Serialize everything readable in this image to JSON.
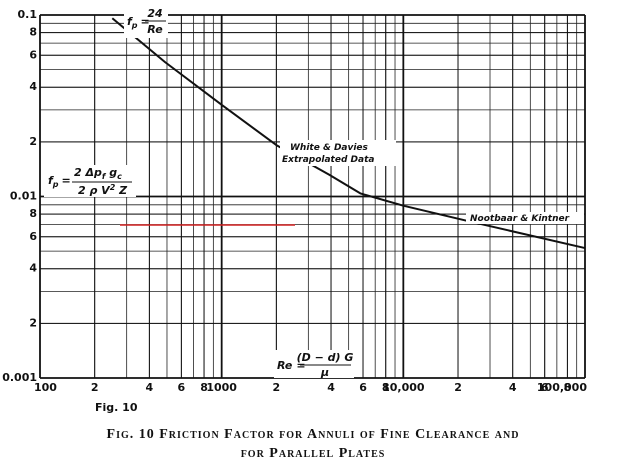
{
  "chart_data": {
    "type": "line",
    "caption": [
      "Fig. 10   Friction Factor for Annuli of Fine Clearance and",
      "for Parallel Plates"
    ],
    "figure_label": "Fig.  10",
    "x": [
      250,
      488,
      1000,
      2000,
      3900,
      5800,
      10000,
      23000,
      100000
    ],
    "series": [
      {
        "color": "#111111",
        "values": [
          0.096,
          0.055,
          0.032,
          0.0192,
          0.0132,
          0.0104,
          0.0089,
          0.0073,
          0.0052
        ]
      }
    ],
    "x_log": true,
    "y_log": true,
    "grid": true,
    "minor_grid": true,
    "xlim": [
      100,
      100000
    ],
    "ylim": [
      0.001,
      0.1
    ],
    "xticks": [
      100,
      {
        "value": 200,
        "label": "2"
      },
      {
        "value": 400,
        "label": "4"
      },
      {
        "value": 600,
        "label": "6"
      },
      {
        "value": 800,
        "label": "8"
      },
      1000,
      {
        "value": 2000,
        "label": "2"
      },
      {
        "value": 4000,
        "label": "4"
      },
      {
        "value": 6000,
        "label": "6"
      },
      {
        "value": 8000,
        "label": "8"
      },
      {
        "value": 10000,
        "label": "10,000"
      },
      {
        "value": 20000,
        "label": "2"
      },
      {
        "value": 40000,
        "label": "4"
      },
      {
        "value": 60000,
        "label": "6"
      },
      {
        "value": 80000,
        "label": "8"
      },
      {
        "value": 100000,
        "label": "100,000"
      }
    ],
    "yticks": [
      0.1,
      {
        "value": 0.08,
        "label": "8"
      },
      {
        "value": 0.06,
        "label": "6"
      },
      {
        "value": 0.04,
        "label": "4"
      },
      {
        "value": 0.02,
        "label": "2"
      },
      0.01,
      {
        "value": 0.008,
        "label": "8"
      },
      {
        "value": 0.006,
        "label": "6"
      },
      {
        "value": 0.004,
        "label": "4"
      },
      {
        "value": 0.002,
        "label": "2"
      },
      0.001
    ],
    "annotations": {
      "laminar": {
        "f": "f",
        "sub": "p",
        "eq": "=",
        "num": "24",
        "den": "Re"
      },
      "friction": {
        "f": "f",
        "sub": "p",
        "eq": "=",
        "num": "2 Δp",
        "num_sub": "f",
        "num2": " g",
        "num_sub2": "c",
        "den": "2 ρ V",
        "den_sup": "2",
        "den2": " Z"
      },
      "reynolds": {
        "lhs": "Re",
        "eq": "=",
        "num": "(D − d) G",
        "den": "μ"
      },
      "white_davies": [
        "White & Davies",
        "Extrapolated Data"
      ],
      "nootbaar": "Nootbaar & Kintner"
    }
  }
}
